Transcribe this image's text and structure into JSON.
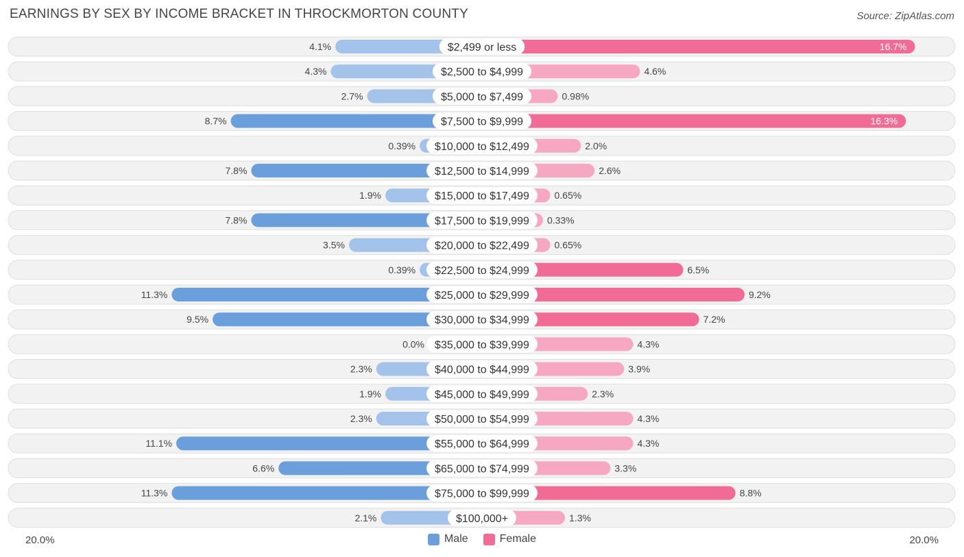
{
  "header": {
    "title": "EARNINGS BY SEX BY INCOME BRACKET IN THROCKMORTON COUNTY",
    "source": "Source: ZipAtlas.com"
  },
  "colors": {
    "male_light": "#a4c3ea",
    "male_dark": "#6a9fdc",
    "female_light": "#f6a8c2",
    "female_dark": "#f06c96",
    "row_bg": "#f2f2f2",
    "row_border": "#dedede"
  },
  "legend": {
    "male_label": "Male",
    "female_label": "Female"
  },
  "axis": {
    "left_label": "20.0%",
    "right_label": "20.0%"
  },
  "chart_data": {
    "type": "bar",
    "orientation": "horizontal-diverging",
    "title": "EARNINGS BY SEX BY INCOME BRACKET IN THROCKMORTON COUNTY",
    "xlim": [
      -20,
      20
    ],
    "categories": [
      "$2,499 or less",
      "$2,500 to $4,999",
      "$5,000 to $7,499",
      "$7,500 to $9,999",
      "$10,000 to $12,499",
      "$12,500 to $14,999",
      "$15,000 to $17,499",
      "$17,500 to $19,999",
      "$20,000 to $22,499",
      "$22,500 to $24,999",
      "$25,000 to $29,999",
      "$30,000 to $34,999",
      "$35,000 to $39,999",
      "$40,000 to $44,999",
      "$45,000 to $49,999",
      "$50,000 to $54,999",
      "$55,000 to $64,999",
      "$65,000 to $74,999",
      "$75,000 to $99,999",
      "$100,000+"
    ],
    "series": [
      {
        "name": "Male",
        "values": [
          4.1,
          4.3,
          2.7,
          8.7,
          0.39,
          7.8,
          1.9,
          7.8,
          3.5,
          0.39,
          11.3,
          9.5,
          0.0,
          2.3,
          1.9,
          2.3,
          11.1,
          6.6,
          11.3,
          2.1
        ],
        "labels": [
          "4.1%",
          "4.3%",
          "2.7%",
          "8.7%",
          "0.39%",
          "7.8%",
          "1.9%",
          "7.8%",
          "3.5%",
          "0.39%",
          "11.3%",
          "9.5%",
          "0.0%",
          "2.3%",
          "1.9%",
          "2.3%",
          "11.1%",
          "6.6%",
          "11.3%",
          "2.1%"
        ]
      },
      {
        "name": "Female",
        "values": [
          16.7,
          4.6,
          0.98,
          16.3,
          2.0,
          2.6,
          0.65,
          0.33,
          0.65,
          6.5,
          9.2,
          7.2,
          4.3,
          3.9,
          2.3,
          4.3,
          4.3,
          3.3,
          8.8,
          1.3
        ],
        "labels": [
          "16.7%",
          "4.6%",
          "0.98%",
          "16.3%",
          "2.0%",
          "2.6%",
          "0.65%",
          "0.33%",
          "0.65%",
          "6.5%",
          "9.2%",
          "7.2%",
          "4.3%",
          "3.9%",
          "2.3%",
          "4.3%",
          "4.3%",
          "3.3%",
          "8.8%",
          "1.3%"
        ]
      }
    ]
  }
}
